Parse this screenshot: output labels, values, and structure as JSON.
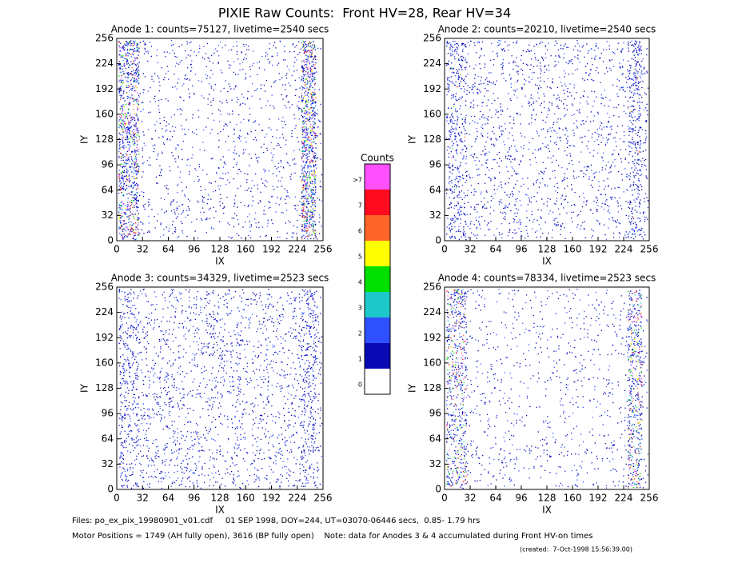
{
  "title": "PIXIE Raw Counts:  Front HV=28, Rear HV=34",
  "chart_data": [
    {
      "type": "heatmap",
      "title": "Anode 1: counts=75127, livetime=2540 secs",
      "xlabel": "IX",
      "ylabel": "IY",
      "xlim": [
        0,
        256
      ],
      "ylim": [
        0,
        256
      ],
      "xticks": [
        0,
        32,
        64,
        96,
        128,
        160,
        192,
        224,
        256
      ],
      "yticks": [
        0,
        32,
        64,
        96,
        128,
        160,
        192,
        224,
        256
      ]
    },
    {
      "type": "heatmap",
      "title": "Anode 2: counts=20210, livetime=2540 secs",
      "xlabel": "IX",
      "ylabel": "IY",
      "xlim": [
        0,
        256
      ],
      "ylim": [
        0,
        256
      ],
      "xticks": [
        0,
        32,
        64,
        96,
        128,
        160,
        192,
        224,
        256
      ],
      "yticks": [
        0,
        32,
        64,
        96,
        128,
        160,
        192,
        224,
        256
      ]
    },
    {
      "type": "heatmap",
      "title": "Anode 3: counts=34329, livetime=2523 secs",
      "xlabel": "IX",
      "ylabel": "IY",
      "xlim": [
        0,
        256
      ],
      "ylim": [
        0,
        256
      ],
      "xticks": [
        0,
        32,
        64,
        96,
        128,
        160,
        192,
        224,
        256
      ],
      "yticks": [
        0,
        32,
        64,
        96,
        128,
        160,
        192,
        224,
        256
      ]
    },
    {
      "type": "heatmap",
      "title": "Anode 4: counts=78334, livetime=2523 secs",
      "xlabel": "IX",
      "ylabel": "IY",
      "xlim": [
        0,
        256
      ],
      "ylim": [
        0,
        256
      ],
      "xticks": [
        0,
        32,
        64,
        96,
        128,
        160,
        192,
        224,
        256
      ],
      "yticks": [
        0,
        32,
        64,
        96,
        128,
        160,
        192,
        224,
        256
      ]
    }
  ],
  "colorbar": {
    "title": "Counts",
    "levels": [
      "0",
      "1",
      "2",
      "3",
      "4",
      "5",
      "6",
      "7",
      ">7"
    ],
    "colors": [
      "#ffffff",
      "#0a0ab4",
      "#2f50ff",
      "#1ec8c8",
      "#00e000",
      "#ffff00",
      "#ff6428",
      "#ff0a1e",
      "#ff50ff"
    ]
  },
  "footer": {
    "files": "Files: po_ex_pix_19980901_v01.cdf     01 SEP 1998, DOY=244, UT=03070-06446 secs,  0.85- 1.79 hrs",
    "motor": "Motor Positions = 1749 (AH fully open), 3616 (BP fully open)    Note: data for Anodes 3 & 4 accumulated during Front HV-on times",
    "created": "(created:  7-Oct-1998 15:56:39.00)"
  }
}
